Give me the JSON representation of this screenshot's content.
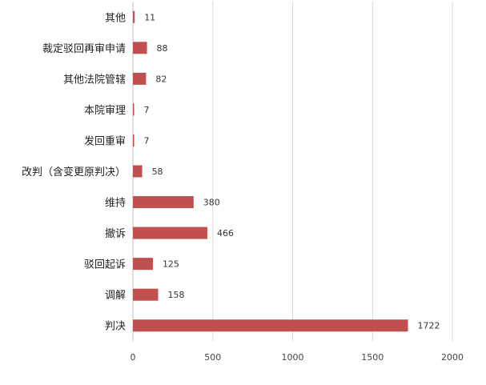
{
  "chart_data": {
    "type": "bar",
    "orientation": "horizontal",
    "categories": [
      "其他",
      "裁定驳回再审申请",
      "其他法院管辖",
      "本院审理",
      "发回重审",
      "改判（含变更原判决）",
      "维持",
      "撤诉",
      "驳回起诉",
      "调解",
      "判决"
    ],
    "values": [
      11,
      88,
      82,
      7,
      7,
      58,
      380,
      466,
      125,
      158,
      1722
    ],
    "title": "",
    "xlabel": "",
    "ylabel": "",
    "xlim": [
      0,
      2000
    ],
    "xticks": [
      0,
      500,
      1000,
      1500,
      2000
    ],
    "grid": true,
    "legend": "none",
    "bar_color": "#c0504d"
  }
}
